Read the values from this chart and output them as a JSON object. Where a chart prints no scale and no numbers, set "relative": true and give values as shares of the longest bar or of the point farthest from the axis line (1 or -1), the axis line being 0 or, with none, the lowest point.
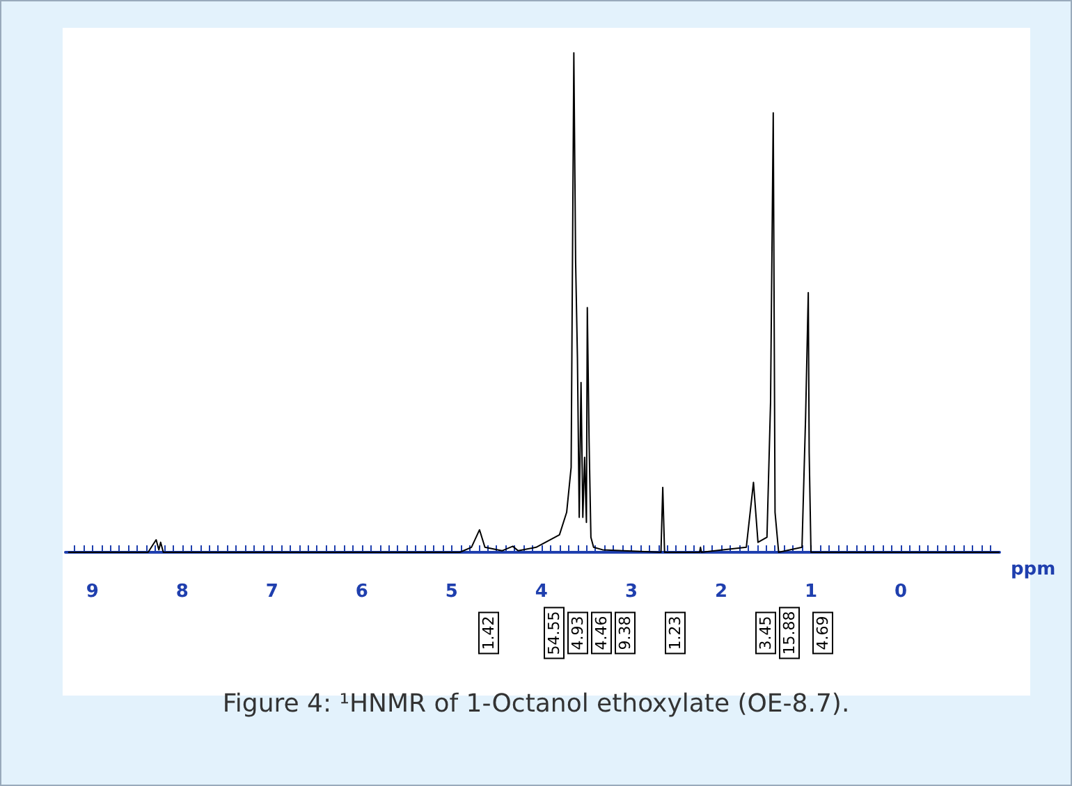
{
  "chart_data": {
    "type": "line",
    "title": "Figure 4: ¹HNMR of 1-Octanol ethoxylate (OE-8.7).",
    "xlabel": "ppm",
    "relative": true,
    "tick_labels": "x",
    "line_style": "solid",
    "marker": "none",
    "xlim": [
      9.3,
      -1.1
    ],
    "xticks": [
      {
        "value": 9.2,
        "label": null
      },
      {
        "value": 9.1,
        "label": null
      },
      9,
      {
        "value": 8.9,
        "label": null
      },
      {
        "value": 8.8,
        "label": null
      },
      {
        "value": 8.7,
        "label": null
      },
      {
        "value": 8.6,
        "label": null
      },
      {
        "value": 8.5,
        "label": null
      },
      {
        "value": 8.4,
        "label": null
      },
      {
        "value": 8.3,
        "label": null
      },
      {
        "value": 8.2,
        "label": null
      },
      {
        "value": 8.1,
        "label": null
      },
      8,
      {
        "value": 7.9,
        "label": null
      },
      {
        "value": 7.8,
        "label": null
      },
      {
        "value": 7.7,
        "label": null
      },
      {
        "value": 7.6,
        "label": null
      },
      {
        "value": 7.5,
        "label": null
      },
      {
        "value": 7.4,
        "label": null
      },
      {
        "value": 7.3,
        "label": null
      },
      {
        "value": 7.2,
        "label": null
      },
      {
        "value": 7.1,
        "label": null
      },
      7,
      {
        "value": 6.9,
        "label": null
      },
      {
        "value": 6.8,
        "label": null
      },
      {
        "value": 6.7,
        "label": null
      },
      {
        "value": 6.6,
        "label": null
      },
      {
        "value": 6.5,
        "label": null
      },
      {
        "value": 6.4,
        "label": null
      },
      {
        "value": 6.3,
        "label": null
      },
      {
        "value": 6.2,
        "label": null
      },
      {
        "value": 6.1,
        "label": null
      },
      6,
      {
        "value": 5.9,
        "label": null
      },
      {
        "value": 5.8,
        "label": null
      },
      {
        "value": 5.7,
        "label": null
      },
      {
        "value": 5.6,
        "label": null
      },
      {
        "value": 5.5,
        "label": null
      },
      {
        "value": 5.4,
        "label": null
      },
      {
        "value": 5.3,
        "label": null
      },
      {
        "value": 5.2,
        "label": null
      },
      {
        "value": 5.1,
        "label": null
      },
      5,
      {
        "value": 4.9,
        "label": null
      },
      {
        "value": 4.8,
        "label": null
      },
      {
        "value": 4.7,
        "label": null
      },
      {
        "value": 4.6,
        "label": null
      },
      {
        "value": 4.5,
        "label": null
      },
      {
        "value": 4.4,
        "label": null
      },
      {
        "value": 4.3,
        "label": null
      },
      {
        "value": 4.2,
        "label": null
      },
      {
        "value": 4.1,
        "label": null
      },
      4,
      {
        "value": 3.9,
        "label": null
      },
      {
        "value": 3.8,
        "label": null
      },
      {
        "value": 3.7,
        "label": null
      },
      {
        "value": 3.6,
        "label": null
      },
      {
        "value": 3.5,
        "label": null
      },
      {
        "value": 3.4,
        "label": null
      },
      {
        "value": 3.3,
        "label": null
      },
      {
        "value": 3.2,
        "label": null
      },
      {
        "value": 3.1,
        "label": null
      },
      3,
      {
        "value": 2.9,
        "label": null
      },
      {
        "value": 2.8,
        "label": null
      },
      {
        "value": 2.7,
        "label": null
      },
      {
        "value": 2.6,
        "label": null
      },
      {
        "value": 2.5,
        "label": null
      },
      {
        "value": 2.4,
        "label": null
      },
      {
        "value": 2.3,
        "label": null
      },
      {
        "value": 2.2,
        "label": null
      },
      {
        "value": 2.1,
        "label": null
      },
      2,
      {
        "value": 1.9,
        "label": null
      },
      {
        "value": 1.8,
        "label": null
      },
      {
        "value": 1.7,
        "label": null
      },
      {
        "value": 1.6,
        "label": null
      },
      {
        "value": 1.5,
        "label": null
      },
      {
        "value": 1.4,
        "label": null
      },
      {
        "value": 1.3,
        "label": null
      },
      {
        "value": 1.2,
        "label": null
      },
      {
        "value": 1.1,
        "label": null
      },
      1,
      {
        "value": 0.9,
        "label": null
      },
      {
        "value": 0.8,
        "label": null
      },
      {
        "value": 0.7,
        "label": null
      },
      {
        "value": 0.6,
        "label": null
      },
      {
        "value": 0.5,
        "label": null
      },
      {
        "value": 0.4,
        "label": null
      },
      {
        "value": 0.3,
        "label": null
      },
      {
        "value": 0.2,
        "label": null
      },
      {
        "value": 0.1,
        "label": null
      },
      0,
      {
        "value": -0.1,
        "label": null
      },
      {
        "value": -0.2,
        "label": null
      },
      {
        "value": -0.3,
        "label": null
      },
      {
        "value": -0.4,
        "label": null
      },
      {
        "value": -0.5,
        "label": null
      },
      {
        "value": -0.6,
        "label": null
      },
      {
        "value": -0.7,
        "label": null
      },
      {
        "value": -0.8,
        "label": null
      },
      {
        "value": -0.9,
        "label": null
      },
      {
        "value": -1.0,
        "label": null
      }
    ],
    "series": [
      {
        "color": "#000000",
        "x": [
          9.27,
          8.38,
          8.29,
          8.26,
          8.24,
          8.21,
          4.91,
          4.78,
          4.69,
          4.63,
          4.44,
          4.32,
          4.26,
          4.06,
          3.8,
          3.72,
          3.67,
          3.64,
          3.62,
          3.6,
          3.58,
          3.56,
          3.54,
          3.52,
          3.5,
          3.49,
          3.47,
          3.45,
          3.42,
          3.32,
          2.67,
          2.65,
          2.63,
          2.24,
          2.23,
          2.22,
          1.72,
          1.64,
          1.59,
          1.49,
          1.45,
          1.42,
          1.4,
          1.36,
          1.1,
          1.06,
          1.03,
          1.02,
          1.0,
          -1.1
        ],
        "values": [
          0,
          0,
          0.025,
          0.005,
          0.02,
          0,
          0,
          0.01,
          0.045,
          0.01,
          0.003,
          0.012,
          0.003,
          0.01,
          0.035,
          0.08,
          0.17,
          1,
          0.58,
          0.39,
          0.07,
          0.34,
          0.07,
          0.19,
          0.06,
          0.49,
          0.22,
          0.03,
          0.01,
          0.005,
          0,
          0.13,
          0,
          0,
          0.01,
          0,
          0.01,
          0.14,
          0.02,
          0.03,
          0.3,
          0.88,
          0.08,
          0,
          0.01,
          0.27,
          0.52,
          0.2,
          0,
          0
        ]
      }
    ],
    "annotations": [
      "1.42",
      "54.55",
      "4.93",
      "4.46",
      "9.38",
      "1.23",
      "3.45",
      "15.88",
      "4.69"
    ]
  }
}
